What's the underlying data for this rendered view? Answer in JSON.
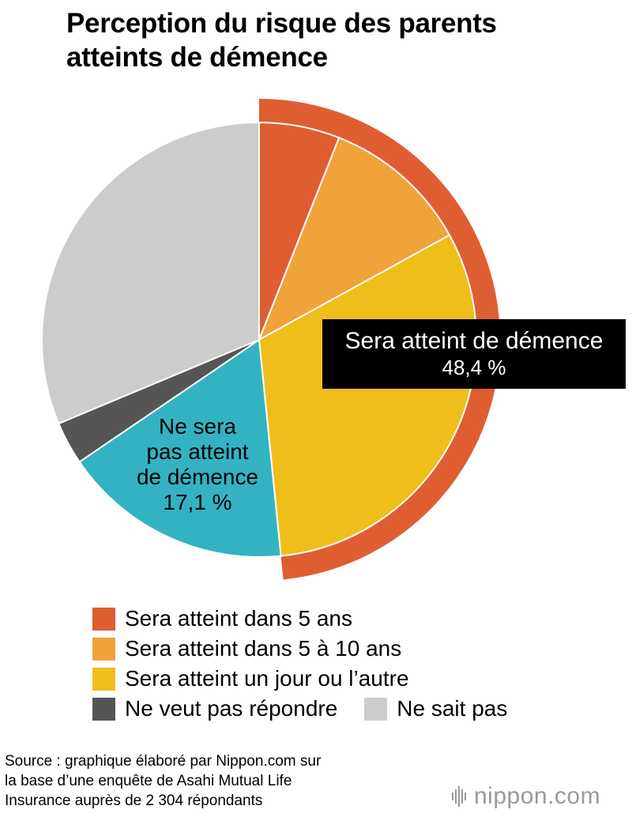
{
  "title_lines": [
    "Perception du risque des parents",
    "atteints de démence"
  ],
  "callout": {
    "line1": "Sera atteint de démence",
    "line2": "48,4 %"
  },
  "slice_label": {
    "lines": [
      "Ne sera",
      "pas atteint",
      "de démence",
      "17,1 %"
    ]
  },
  "legend": [
    {
      "label": "Sera atteint dans 5 ans",
      "color": "#de5e32"
    },
    {
      "label": "Sera atteint dans 5 à 10 ans",
      "color": "#f0a23b"
    },
    {
      "label": "Sera atteint un jour ou l’autre",
      "color": "#f0be1a"
    },
    {
      "label": "Ne veut pas répondre",
      "color": "#555555"
    },
    {
      "label": "Ne sait pas",
      "color": "#cccccc"
    }
  ],
  "source_lines": [
    "Source : graphique élaboré par Nippon.com sur",
    "la base d’une enquête de Asahi Mutual Life",
    "Insurance auprès de 2 304 répondants"
  ],
  "logo": {
    "text": "nippon",
    "suffix": ".com",
    "icon": "sound-bars-icon"
  },
  "chart_data": {
    "type": "pie",
    "title": "Perception du risque des parents atteints de démence",
    "start_angle_deg": 0,
    "direction": "clockwise",
    "slices": [
      {
        "label": "Sera atteint dans 5 ans",
        "value": 6.0,
        "color": "#de5e32"
      },
      {
        "label": "Sera atteint dans 5 à 10 ans",
        "value": 11.0,
        "color": "#f0a23b"
      },
      {
        "label": "Sera atteint un jour ou l’autre",
        "value": 31.4,
        "color": "#f0be1a"
      },
      {
        "label": "Ne sera pas atteint de démence",
        "value": 17.1,
        "color": "#33b3c2"
      },
      {
        "label": "Ne veut pas répondre",
        "value": 3.2,
        "color": "#555555"
      },
      {
        "label": "Ne sait pas",
        "value": 31.3,
        "color": "#cccccc"
      }
    ],
    "groups": [
      {
        "label": "Sera atteint de démence",
        "value": 48.4,
        "color": "#de5e32",
        "slice_indices": [
          0,
          1,
          2
        ]
      },
      {
        "label": "Ne sera pas atteint de démence",
        "value": 17.1,
        "slice_indices": [
          3
        ]
      }
    ],
    "annotations": [
      "Sera atteint de démence 48,4 %",
      "Ne sera pas atteint de démence 17,1 %"
    ]
  }
}
